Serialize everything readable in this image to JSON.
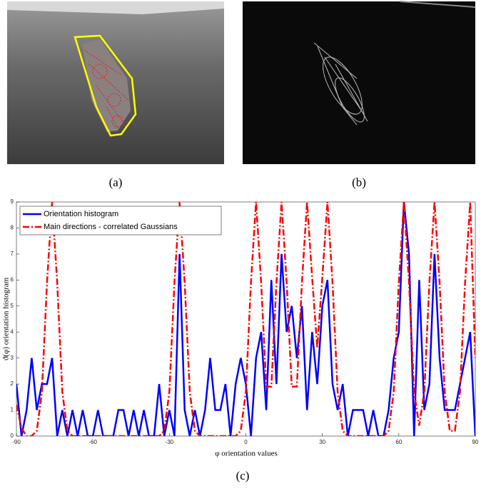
{
  "captions": [
    "(a)",
    "(b)",
    "(c)"
  ],
  "chart_data": {
    "type": "line",
    "xlabel": "φ orientation values",
    "ylabel": "ϑ(φ) orientation histogram",
    "x": [
      -90,
      -88,
      -86,
      -84,
      -82,
      -80,
      -78,
      -76,
      -74,
      -72,
      -70,
      -68,
      -66,
      -64,
      -62,
      -60,
      -58,
      -56,
      -54,
      -52,
      -50,
      -48,
      -46,
      -44,
      -42,
      -40,
      -38,
      -36,
      -34,
      -32,
      -30,
      -28,
      -26,
      -24,
      -22,
      -20,
      -18,
      -16,
      -14,
      -12,
      -10,
      -8,
      -6,
      -4,
      -2,
      0,
      2,
      4,
      6,
      8,
      10,
      12,
      14,
      16,
      18,
      20,
      22,
      24,
      26,
      28,
      30,
      32,
      34,
      36,
      38,
      40,
      42,
      44,
      46,
      48,
      50,
      52,
      54,
      56,
      58,
      60,
      62,
      64,
      66,
      68,
      70,
      72,
      74,
      76,
      78,
      80,
      82,
      84,
      86,
      88,
      90
    ],
    "series": [
      {
        "name": "Orientation histogram",
        "color": "#0000ff",
        "style": "solid",
        "values": [
          2,
          0,
          1,
          3,
          1,
          2,
          2,
          3,
          0,
          1,
          0,
          1,
          0,
          1,
          0,
          0,
          1,
          0,
          0,
          0,
          1,
          1,
          0,
          1,
          0,
          1,
          0,
          0,
          2,
          0,
          1,
          0,
          7,
          1,
          0,
          1,
          0,
          1,
          3,
          1,
          1,
          2,
          0,
          2,
          3,
          2,
          0,
          3,
          4,
          1,
          6,
          2,
          7,
          4,
          5,
          3,
          5,
          1,
          4,
          2,
          5,
          6,
          2,
          1,
          2,
          0,
          1,
          1,
          1,
          0,
          1,
          0,
          0,
          1,
          3,
          4,
          9,
          7,
          0,
          6,
          1,
          2,
          7,
          3,
          1,
          1,
          1,
          2,
          3,
          4,
          0
        ]
      },
      {
        "name": "Main directions - correlated Gaussians",
        "color": "#ff0000",
        "style": "dashdot",
        "values": [
          1.2,
          0.3,
          0,
          0,
          0.2,
          1.7,
          5.9,
          9,
          5.9,
          1.7,
          0.2,
          0,
          0,
          0,
          0,
          0,
          0,
          0,
          0,
          0,
          0,
          0,
          0,
          0,
          0,
          0,
          0,
          0,
          0,
          0.2,
          1.7,
          5.9,
          9,
          5.9,
          1.7,
          0.2,
          0,
          0,
          0,
          0,
          0,
          0,
          0,
          0,
          0.2,
          1.7,
          5.9,
          9,
          5.9,
          1.9,
          1.9,
          5.9,
          9,
          5.9,
          1.9,
          1.9,
          5.9,
          9,
          6.1,
          3.4,
          6.1,
          9,
          5.9,
          1.7,
          0.2,
          0,
          0,
          0,
          0,
          0,
          0,
          0,
          0,
          0.2,
          1.7,
          5.9,
          9,
          5.9,
          1.7,
          0.4,
          1.7,
          5.9,
          9,
          5.9,
          1.7,
          0.2,
          0.2,
          1.7,
          5.9,
          9,
          3
        ]
      }
    ],
    "xlim": [
      -90,
      90
    ],
    "xticks": [
      -90,
      -60,
      -30,
      0,
      30,
      60,
      90
    ],
    "ylim": [
      0,
      9
    ],
    "yticks": [
      0,
      1,
      2,
      3,
      4,
      5,
      6,
      7,
      8,
      9
    ],
    "legend": "upper-left"
  }
}
